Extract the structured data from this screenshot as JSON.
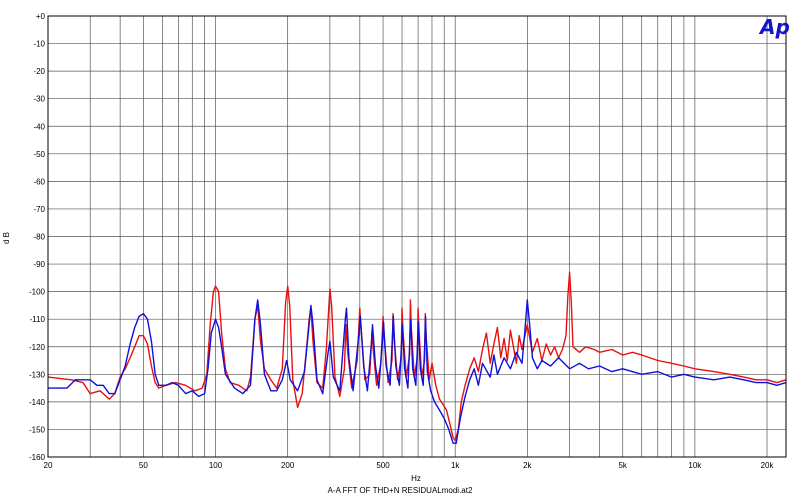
{
  "chart_data": {
    "type": "line",
    "title": "",
    "xlabel": "Hz",
    "ylabel": "d B",
    "caption": "A-A FFT OF THD+N RESIDUALmodi.at2",
    "logo": "Ap",
    "xscale": "log",
    "xlim": [
      20,
      24000
    ],
    "ylim": [
      -160,
      0
    ],
    "grid": true,
    "y_ticks": [
      0,
      -10,
      -20,
      -30,
      -40,
      -50,
      -60,
      -70,
      -80,
      -90,
      -100,
      -110,
      -120,
      -130,
      -140,
      -150,
      -160
    ],
    "y_tick_labels": [
      "+0",
      "-10",
      "-20",
      "-30",
      "-40",
      "-50",
      "-60",
      "-70",
      "-80",
      "-90",
      "-100",
      "-110",
      "-120",
      "-130",
      "-140",
      "-150",
      "-160"
    ],
    "x_ticks": [
      20,
      50,
      100,
      200,
      500,
      1000,
      2000,
      5000,
      10000,
      20000
    ],
    "x_tick_labels": [
      "20",
      "50",
      "100",
      "200",
      "500",
      "1k",
      "2k",
      "5k",
      "10k",
      "20k"
    ],
    "x_minor_grid": [
      30,
      40,
      60,
      70,
      80,
      90,
      300,
      400,
      600,
      700,
      800,
      900,
      3000,
      4000,
      6000,
      7000,
      8000,
      9000
    ],
    "series": [
      {
        "color": "#e81010",
        "points": [
          [
            20,
            -131
          ],
          [
            25,
            -132
          ],
          [
            28,
            -133
          ],
          [
            30,
            -137
          ],
          [
            33,
            -136
          ],
          [
            36,
            -139
          ],
          [
            38,
            -137
          ],
          [
            40,
            -131
          ],
          [
            42,
            -128
          ],
          [
            44,
            -124
          ],
          [
            46,
            -120
          ],
          [
            48,
            -116
          ],
          [
            50,
            -116
          ],
          [
            52,
            -119
          ],
          [
            54,
            -127
          ],
          [
            56,
            -133
          ],
          [
            58,
            -135
          ],
          [
            62,
            -134
          ],
          [
            68,
            -133
          ],
          [
            75,
            -134
          ],
          [
            82,
            -136
          ],
          [
            88,
            -135
          ],
          [
            92,
            -130
          ],
          [
            95,
            -112
          ],
          [
            98,
            -100
          ],
          [
            100,
            -98
          ],
          [
            103,
            -100
          ],
          [
            106,
            -115
          ],
          [
            110,
            -128
          ],
          [
            115,
            -133
          ],
          [
            125,
            -134
          ],
          [
            135,
            -136
          ],
          [
            140,
            -131
          ],
          [
            146,
            -110
          ],
          [
            150,
            -105
          ],
          [
            154,
            -118
          ],
          [
            160,
            -128
          ],
          [
            170,
            -132
          ],
          [
            180,
            -135
          ],
          [
            190,
            -128
          ],
          [
            196,
            -104
          ],
          [
            200,
            -98
          ],
          [
            204,
            -105
          ],
          [
            210,
            -132
          ],
          [
            220,
            -142
          ],
          [
            230,
            -137
          ],
          [
            240,
            -120
          ],
          [
            246,
            -110
          ],
          [
            250,
            -106
          ],
          [
            255,
            -118
          ],
          [
            265,
            -133
          ],
          [
            280,
            -135
          ],
          [
            290,
            -121
          ],
          [
            300,
            -99
          ],
          [
            305,
            -105
          ],
          [
            315,
            -131
          ],
          [
            330,
            -138
          ],
          [
            345,
            -128
          ],
          [
            350,
            -112
          ],
          [
            356,
            -122
          ],
          [
            370,
            -135
          ],
          [
            390,
            -125
          ],
          [
            400,
            -106
          ],
          [
            405,
            -113
          ],
          [
            420,
            -132
          ],
          [
            440,
            -130
          ],
          [
            450,
            -114
          ],
          [
            455,
            -121
          ],
          [
            470,
            -134
          ],
          [
            490,
            -126
          ],
          [
            500,
            -109
          ],
          [
            505,
            -116
          ],
          [
            525,
            -133
          ],
          [
            545,
            -125
          ],
          [
            550,
            -108
          ],
          [
            556,
            -117
          ],
          [
            575,
            -132
          ],
          [
            595,
            -124
          ],
          [
            600,
            -106
          ],
          [
            606,
            -115
          ],
          [
            625,
            -131
          ],
          [
            645,
            -123
          ],
          [
            650,
            -103
          ],
          [
            656,
            -113
          ],
          [
            675,
            -131
          ],
          [
            695,
            -124
          ],
          [
            700,
            -106
          ],
          [
            706,
            -114
          ],
          [
            725,
            -131
          ],
          [
            745,
            -125
          ],
          [
            750,
            -108
          ],
          [
            756,
            -116
          ],
          [
            780,
            -132
          ],
          [
            800,
            -126
          ],
          [
            830,
            -134
          ],
          [
            860,
            -139
          ],
          [
            890,
            -141
          ],
          [
            920,
            -143
          ],
          [
            950,
            -148
          ],
          [
            980,
            -153
          ],
          [
            1000,
            -154
          ],
          [
            1030,
            -150
          ],
          [
            1060,
            -140
          ],
          [
            1100,
            -134
          ],
          [
            1150,
            -128
          ],
          [
            1200,
            -124
          ],
          [
            1250,
            -129
          ],
          [
            1300,
            -121
          ],
          [
            1350,
            -115
          ],
          [
            1400,
            -126
          ],
          [
            1450,
            -119
          ],
          [
            1500,
            -113
          ],
          [
            1550,
            -124
          ],
          [
            1600,
            -117
          ],
          [
            1650,
            -125
          ],
          [
            1700,
            -114
          ],
          [
            1750,
            -120
          ],
          [
            1800,
            -126
          ],
          [
            1850,
            -116
          ],
          [
            1900,
            -121
          ],
          [
            2000,
            -112
          ],
          [
            2100,
            -122
          ],
          [
            2200,
            -117
          ],
          [
            2300,
            -125
          ],
          [
            2400,
            -119
          ],
          [
            2500,
            -123
          ],
          [
            2600,
            -120
          ],
          [
            2700,
            -124
          ],
          [
            2800,
            -121
          ],
          [
            2900,
            -116
          ],
          [
            2950,
            -102
          ],
          [
            3000,
            -93
          ],
          [
            3050,
            -104
          ],
          [
            3100,
            -120
          ],
          [
            3300,
            -122
          ],
          [
            3500,
            -120
          ],
          [
            3800,
            -121
          ],
          [
            4000,
            -122
          ],
          [
            4500,
            -121
          ],
          [
            5000,
            -123
          ],
          [
            5500,
            -122
          ],
          [
            6000,
            -123
          ],
          [
            7000,
            -125
          ],
          [
            8000,
            -126
          ],
          [
            9000,
            -127
          ],
          [
            10000,
            -128
          ],
          [
            12000,
            -129
          ],
          [
            14000,
            -130
          ],
          [
            16000,
            -131
          ],
          [
            18000,
            -132
          ],
          [
            20000,
            -132
          ],
          [
            22000,
            -133
          ],
          [
            24000,
            -132
          ]
        ]
      },
      {
        "color": "#1010d8",
        "points": [
          [
            20,
            -135
          ],
          [
            24,
            -135
          ],
          [
            26,
            -132
          ],
          [
            30,
            -132
          ],
          [
            32,
            -134
          ],
          [
            34,
            -134
          ],
          [
            36,
            -137
          ],
          [
            38,
            -137
          ],
          [
            40,
            -132
          ],
          [
            42,
            -127
          ],
          [
            44,
            -119
          ],
          [
            46,
            -113
          ],
          [
            48,
            -109
          ],
          [
            50,
            -108
          ],
          [
            52,
            -110
          ],
          [
            54,
            -118
          ],
          [
            56,
            -130
          ],
          [
            58,
            -134
          ],
          [
            62,
            -134
          ],
          [
            66,
            -133
          ],
          [
            70,
            -134
          ],
          [
            75,
            -137
          ],
          [
            80,
            -136
          ],
          [
            85,
            -138
          ],
          [
            90,
            -137
          ],
          [
            93,
            -128
          ],
          [
            96,
            -115
          ],
          [
            100,
            -110
          ],
          [
            103,
            -113
          ],
          [
            106,
            -120
          ],
          [
            110,
            -130
          ],
          [
            120,
            -135
          ],
          [
            130,
            -137
          ],
          [
            140,
            -134
          ],
          [
            146,
            -110
          ],
          [
            150,
            -103
          ],
          [
            154,
            -112
          ],
          [
            160,
            -130
          ],
          [
            170,
            -136
          ],
          [
            180,
            -136
          ],
          [
            190,
            -132
          ],
          [
            198,
            -125
          ],
          [
            205,
            -132
          ],
          [
            220,
            -136
          ],
          [
            235,
            -129
          ],
          [
            245,
            -113
          ],
          [
            250,
            -105
          ],
          [
            255,
            -112
          ],
          [
            265,
            -132
          ],
          [
            280,
            -137
          ],
          [
            295,
            -122
          ],
          [
            300,
            -118
          ],
          [
            310,
            -131
          ],
          [
            330,
            -136
          ],
          [
            348,
            -110
          ],
          [
            352,
            -106
          ],
          [
            360,
            -124
          ],
          [
            375,
            -136
          ],
          [
            398,
            -114
          ],
          [
            402,
            -109
          ],
          [
            415,
            -127
          ],
          [
            430,
            -136
          ],
          [
            448,
            -118
          ],
          [
            452,
            -112
          ],
          [
            465,
            -127
          ],
          [
            480,
            -135
          ],
          [
            498,
            -117
          ],
          [
            502,
            -111
          ],
          [
            515,
            -127
          ],
          [
            535,
            -134
          ],
          [
            548,
            -115
          ],
          [
            552,
            -109
          ],
          [
            565,
            -127
          ],
          [
            585,
            -134
          ],
          [
            598,
            -118
          ],
          [
            602,
            -112
          ],
          [
            615,
            -128
          ],
          [
            635,
            -135
          ],
          [
            648,
            -116
          ],
          [
            652,
            -110
          ],
          [
            665,
            -128
          ],
          [
            685,
            -134
          ],
          [
            698,
            -117
          ],
          [
            702,
            -111
          ],
          [
            715,
            -128
          ],
          [
            735,
            -134
          ],
          [
            748,
            -116
          ],
          [
            752,
            -109
          ],
          [
            765,
            -129
          ],
          [
            790,
            -136
          ],
          [
            820,
            -140
          ],
          [
            860,
            -143
          ],
          [
            900,
            -146
          ],
          [
            940,
            -150
          ],
          [
            980,
            -155
          ],
          [
            1010,
            -155
          ],
          [
            1050,
            -146
          ],
          [
            1100,
            -138
          ],
          [
            1150,
            -132
          ],
          [
            1200,
            -128
          ],
          [
            1250,
            -134
          ],
          [
            1300,
            -126
          ],
          [
            1400,
            -131
          ],
          [
            1450,
            -123
          ],
          [
            1500,
            -130
          ],
          [
            1600,
            -124
          ],
          [
            1700,
            -128
          ],
          [
            1800,
            -122
          ],
          [
            1900,
            -126
          ],
          [
            1950,
            -115
          ],
          [
            2000,
            -103
          ],
          [
            2050,
            -113
          ],
          [
            2100,
            -124
          ],
          [
            2200,
            -128
          ],
          [
            2300,
            -125
          ],
          [
            2500,
            -127
          ],
          [
            2700,
            -124
          ],
          [
            3000,
            -128
          ],
          [
            3300,
            -126
          ],
          [
            3600,
            -128
          ],
          [
            4000,
            -127
          ],
          [
            4500,
            -129
          ],
          [
            5000,
            -128
          ],
          [
            6000,
            -130
          ],
          [
            7000,
            -129
          ],
          [
            8000,
            -131
          ],
          [
            9000,
            -130
          ],
          [
            10000,
            -131
          ],
          [
            12000,
            -132
          ],
          [
            14000,
            -131
          ],
          [
            16000,
            -132
          ],
          [
            18000,
            -133
          ],
          [
            20000,
            -133
          ],
          [
            22000,
            -134
          ],
          [
            24000,
            -133
          ]
        ]
      }
    ]
  }
}
